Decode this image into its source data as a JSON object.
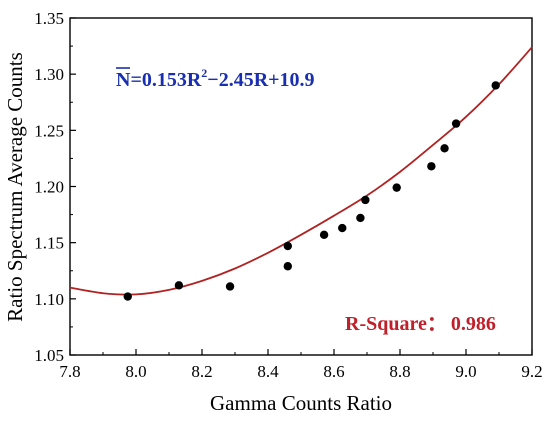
{
  "chart_data": {
    "type": "scatter",
    "title": "",
    "xlabel": "Gamma Counts Ratio",
    "ylabel": "Ratio Spectrum Average Counts",
    "xlim": [
      7.8,
      9.2
    ],
    "ylim": [
      1.05,
      1.35
    ],
    "x_ticks": [
      "7.8",
      "8.0",
      "8.2",
      "8.4",
      "8.6",
      "8.8",
      "9.0",
      "9.2"
    ],
    "y_ticks": [
      "1.05",
      "1.10",
      "1.15",
      "1.20",
      "1.25",
      "1.30",
      "1.35"
    ],
    "grid": false,
    "series": [
      {
        "kind": "points",
        "color": "#000000",
        "points": [
          [
            7.975,
            1.102
          ],
          [
            8.13,
            1.112
          ],
          [
            8.285,
            1.111
          ],
          [
            8.46,
            1.147
          ],
          [
            8.46,
            1.129
          ],
          [
            8.57,
            1.157
          ],
          [
            8.625,
            1.163
          ],
          [
            8.68,
            1.172
          ],
          [
            8.695,
            1.188
          ],
          [
            8.79,
            1.199
          ],
          [
            8.895,
            1.218
          ],
          [
            8.935,
            1.234
          ],
          [
            8.97,
            1.256
          ],
          [
            9.09,
            1.29
          ]
        ]
      },
      {
        "kind": "fit-curve",
        "color": "#b22222",
        "equation": "quadratic",
        "x_range": [
          7.8,
          9.2
        ],
        "curve_points": [
          [
            7.8,
            1.11
          ],
          [
            7.9,
            1.105
          ],
          [
            8.0,
            1.104
          ],
          [
            8.1,
            1.108
          ],
          [
            8.2,
            1.116
          ],
          [
            8.3,
            1.127
          ],
          [
            8.4,
            1.141
          ],
          [
            8.5,
            1.157
          ],
          [
            8.6,
            1.174
          ],
          [
            8.7,
            1.192
          ],
          [
            8.8,
            1.213
          ],
          [
            8.9,
            1.237
          ],
          [
            9.0,
            1.262
          ],
          [
            9.1,
            1.291
          ],
          [
            9.2,
            1.324
          ]
        ]
      }
    ],
    "annotations": {
      "equation": {
        "main": "N=0.153R",
        "sup": "2",
        "rest": "−2.45R+10.9",
        "overline_symbol": "N",
        "color": "#1a2fb0"
      },
      "r_square": {
        "label": "R-Square：",
        "value": "0.986",
        "color": "#c0202a"
      }
    }
  }
}
